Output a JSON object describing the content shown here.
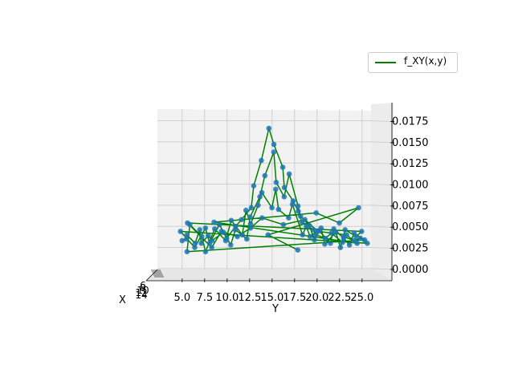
{
  "chart_data": {
    "type": "scatter",
    "subtype": "3d-scatter-with-line",
    "title": "",
    "xlabel": "X",
    "ylabel": "Y",
    "zlabel": "",
    "x_tick_labels": [
      "6",
      "8",
      "10",
      "12",
      "14"
    ],
    "y_tick_labels": [
      "5.0",
      "7.5",
      "10.0",
      "12.5",
      "15.0",
      "17.5",
      "20.0",
      "22.5",
      "25.0"
    ],
    "z_tick_labels": [
      "0.0000",
      "0.0025",
      "0.0050",
      "0.0075",
      "0.0100",
      "0.0125",
      "0.0150",
      "0.0175"
    ],
    "ylim": [
      3.5,
      26
    ],
    "zlim": [
      -0.0002,
      0.0185
    ],
    "grid": true,
    "legend": {
      "position": "top-right",
      "entries": [
        "f_XY(x,y)"
      ]
    },
    "colors": {
      "line": "#008000",
      "marker": "#1f77b4",
      "pane": "#f2f2f2"
    },
    "series": [
      {
        "name": "f_XY(x,y)",
        "points": [
          [
            10,
            5,
            0.0033
          ],
          [
            12,
            5.2,
            0.0035
          ],
          [
            8,
            5.8,
            0.004
          ],
          [
            11,
            6.3,
            0.003
          ],
          [
            9,
            7.1,
            0.0046
          ],
          [
            13,
            6.7,
            0.003
          ],
          [
            10,
            7.9,
            0.0039
          ],
          [
            8,
            8.6,
            0.0033
          ],
          [
            12,
            9.3,
            0.0043
          ],
          [
            9,
            10.1,
            0.0036
          ],
          [
            11,
            10.8,
            0.005
          ],
          [
            10,
            11.6,
            0.0058
          ],
          [
            12,
            12.4,
            0.0072
          ],
          [
            9,
            13.1,
            0.0098
          ],
          [
            10,
            13.8,
            0.0128
          ],
          [
            11,
            14.5,
            0.0166
          ],
          [
            10,
            15.2,
            0.0147
          ],
          [
            12,
            15.9,
            0.012
          ],
          [
            9,
            16.5,
            0.0096
          ],
          [
            11,
            17.2,
            0.008
          ],
          [
            10,
            17.9,
            0.0068
          ],
          [
            8,
            18.6,
            0.0055
          ],
          [
            12,
            19.3,
            0.0046
          ],
          [
            9,
            20.0,
            0.004
          ],
          [
            11,
            20.8,
            0.0036
          ],
          [
            10,
            21.6,
            0.0042
          ],
          [
            13,
            22.4,
            0.0031
          ],
          [
            9,
            23.1,
            0.0038
          ],
          [
            11,
            24.0,
            0.0033
          ],
          [
            10,
            24.8,
            0.0036
          ],
          [
            12,
            25.3,
            0.003
          ],
          [
            8,
            5.1,
            0.0044
          ],
          [
            10,
            6.4,
            0.0025
          ],
          [
            12,
            7.3,
            0.0048
          ],
          [
            9,
            8.2,
            0.003
          ],
          [
            11,
            9.0,
            0.0052
          ],
          [
            10,
            10.4,
            0.0028
          ],
          [
            8,
            11.2,
            0.0046
          ],
          [
            12,
            11.9,
            0.0035
          ],
          [
            9,
            12.7,
            0.0061
          ],
          [
            11,
            13.5,
            0.0085
          ],
          [
            10,
            14.2,
            0.011
          ],
          [
            12,
            14.9,
            0.0138
          ],
          [
            9,
            15.6,
            0.0102
          ],
          [
            11,
            16.2,
            0.0085
          ],
          [
            10,
            16.9,
            0.0112
          ],
          [
            12,
            17.6,
            0.0074
          ],
          [
            9,
            18.3,
            0.0062
          ],
          [
            11,
            19.0,
            0.0051
          ],
          [
            10,
            19.7,
            0.0034
          ],
          [
            8,
            20.5,
            0.0045
          ],
          [
            12,
            21.2,
            0.003
          ],
          [
            9,
            22.0,
            0.0047
          ],
          [
            11,
            22.8,
            0.0036
          ],
          [
            10,
            23.6,
            0.0028
          ],
          [
            8,
            24.4,
            0.0042
          ],
          [
            12,
            25.0,
            0.0034
          ],
          [
            11,
            5.4,
            0.002
          ],
          [
            9,
            6.0,
            0.0052
          ],
          [
            12,
            6.9,
            0.0038
          ],
          [
            10,
            7.6,
            0.002
          ],
          [
            8,
            8.9,
            0.0047
          ],
          [
            11,
            9.7,
            0.0033
          ],
          [
            9,
            10.6,
            0.0057
          ],
          [
            12,
            11.4,
            0.004
          ],
          [
            10,
            12.1,
            0.0069
          ],
          [
            8,
            12.9,
            0.0053
          ],
          [
            11,
            13.3,
            0.0075
          ],
          [
            9,
            14.0,
            0.009
          ],
          [
            12,
            14.7,
            0.0072
          ],
          [
            10,
            15.4,
            0.0094
          ],
          [
            8,
            16.0,
            0.007
          ],
          [
            11,
            16.7,
            0.006
          ],
          [
            9,
            17.4,
            0.0076
          ],
          [
            12,
            18.1,
            0.004
          ],
          [
            10,
            18.8,
            0.005
          ],
          [
            8,
            19.5,
            0.0038
          ],
          [
            11,
            20.3,
            0.0048
          ],
          [
            9,
            21.0,
            0.0029
          ],
          [
            12,
            21.8,
            0.0043
          ],
          [
            10,
            22.6,
            0.0025
          ],
          [
            8,
            23.4,
            0.0046
          ],
          [
            11,
            24.2,
            0.0038
          ],
          [
            9,
            25.1,
            0.0044
          ],
          [
            10,
            5.6,
            0.0054
          ],
          [
            12,
            8.0,
            0.0025
          ],
          [
            9,
            9.5,
            0.0044
          ],
          [
            11,
            11.0,
            0.0038
          ],
          [
            10,
            12.6,
            0.0048
          ],
          [
            12,
            13.6,
            0.006
          ],
          [
            9,
            16.4,
            0.0052
          ],
          [
            11,
            18.5,
            0.0058
          ],
          [
            10,
            20.1,
            0.0044
          ],
          [
            12,
            23.0,
            0.004
          ],
          [
            9,
            24.6,
            0.003
          ],
          [
            11,
            8.4,
            0.0055
          ],
          [
            10,
            19.9,
            0.0066
          ],
          [
            12,
            22.2,
            0.0054
          ],
          [
            8,
            24.9,
            0.0072
          ],
          [
            11,
            14.4,
            0.004
          ],
          [
            9,
            18.0,
            0.0022
          ]
        ]
      }
    ]
  }
}
